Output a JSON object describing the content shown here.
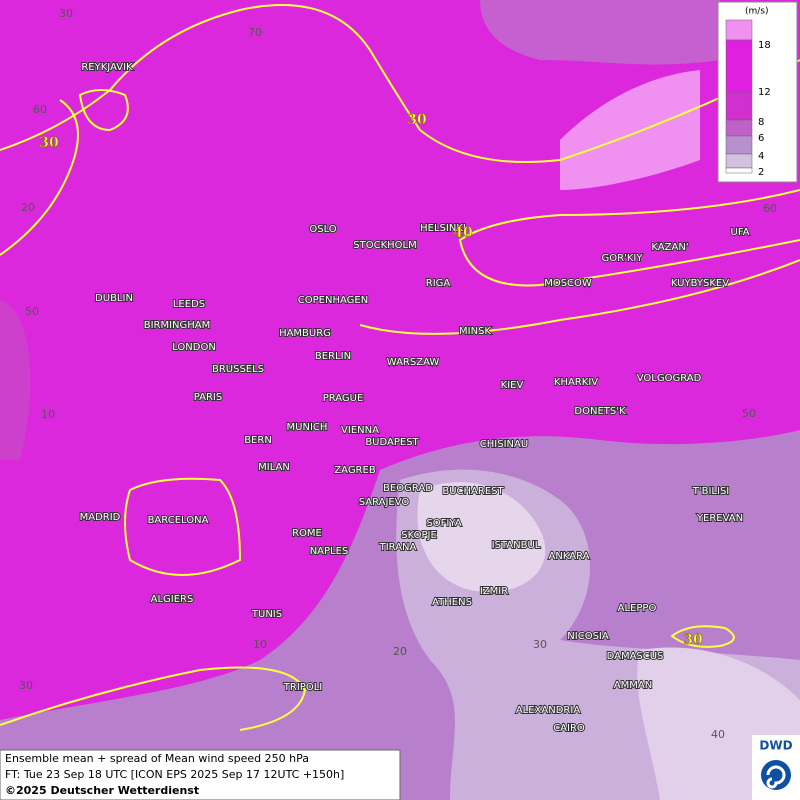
{
  "legend": {
    "unit": "(m/s)",
    "labels": [
      "18",
      "12",
      "8",
      "6",
      "4",
      "2"
    ]
  },
  "map": {
    "cities": [
      "REYKJAVIK",
      "OSLO",
      "STOCKHOLM",
      "HELSINKI",
      "RIGA",
      "MOSCOW",
      "GOR'KIY",
      "KAZAN'",
      "UFA",
      "KUYBYSKEV",
      "DUBLIN",
      "LEEDS",
      "BIRMINGHAM",
      "LONDON",
      "COPENHAGEN",
      "HAMBURG",
      "BERLIN",
      "MINSK",
      "WARSZAW",
      "BRUSSELS",
      "PARIS",
      "PRAGUE",
      "KIEV",
      "KHARKIV",
      "VOLGOGRAD",
      "DONETS'K",
      "MUNICH",
      "VIENNA",
      "BERN",
      "BUDAPEST",
      "CHISINAU",
      "MILAN",
      "ZAGREB",
      "BEOGRAD",
      "BUCHAREST",
      "T'BILISI",
      "MADRID",
      "BARCELONA",
      "SARAJEVO",
      "SOFIYA",
      "YEREVAN",
      "ROME",
      "SKOPJE",
      "TIRANA",
      "ISTANBUL",
      "ANKARA",
      "NAPLES",
      "IZMIR",
      "ATHENS",
      "ALGIERS",
      "TUNIS",
      "ALEPPO",
      "NICOSIA",
      "DAMASCUS",
      "AMMAN",
      "TRIPOLI",
      "ALEXANDRIA",
      "CAIRO"
    ],
    "grid_labels": [
      "30",
      "70",
      "60",
      "20",
      "50",
      "10",
      "60",
      "50",
      "10",
      "20",
      "30",
      "30",
      "40"
    ],
    "contour_labels": [
      "30",
      "30",
      "40",
      "30"
    ]
  },
  "footer": {
    "lines": [
      "Ensemble mean + spread of Mean wind speed 250 hPa",
      "FT: Tue 23 Sep 18 UTC [ICON EPS 2025 Sep 17 12UTC +150h]",
      "©2025 Deutscher Wetterdienst"
    ]
  },
  "logo": "DWD"
}
